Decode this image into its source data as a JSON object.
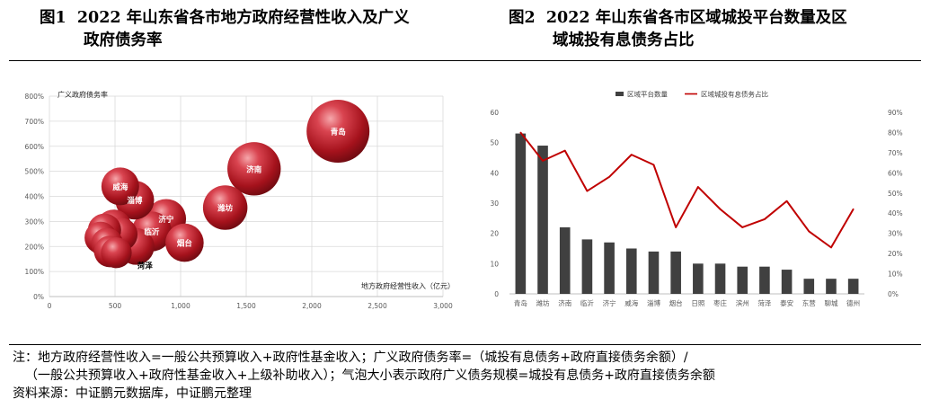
{
  "figure1": {
    "number": "图1",
    "title_line1": "2022 年山东省各市地方政府经营性收入及广义",
    "title_line2": "政府债务率"
  },
  "figure2": {
    "number": "图2",
    "title_line1": "2022 年山东省各市区域城投平台数量及区",
    "title_line2": "域城投有息债务占比"
  },
  "notes": {
    "line1": "注：地方政府经营性收入=一般公共预算收入+政府性基金收入；广义政府债务率=（城投有息债务+政府直接债务余额）/",
    "line2": "（一般公共预算收入+政府性基金收入+上级补助收入）；气泡大小表示政府广义债务规模=城投有息债务+政府直接债务余额",
    "line3": "资料来源：中证鹏元数据库，中证鹏元整理"
  },
  "chart_data": [
    {
      "type": "scatter",
      "bubble": true,
      "ylabel": "广义政府债务率",
      "xlabel": "地方政府经营性收入（亿元）",
      "xlim": [
        0,
        3000
      ],
      "ylim": [
        0,
        800
      ],
      "x_ticks": [
        "0",
        "500",
        "1,000",
        "1,500",
        "2,000",
        "2,500",
        "3,000"
      ],
      "y_ticks": [
        "0%",
        "100%",
        "200%",
        "300%",
        "400%",
        "500%",
        "600%",
        "700%",
        "800%"
      ],
      "grid": true,
      "color": "#b81d24",
      "points": [
        {
          "label": "青岛",
          "x": 2200,
          "y": 660,
          "size": 1.0
        },
        {
          "label": "济南",
          "x": 1560,
          "y": 510,
          "size": 0.72
        },
        {
          "label": "潍坊",
          "x": 1340,
          "y": 355,
          "size": 0.5
        },
        {
          "label": "烟台",
          "x": 1030,
          "y": 215,
          "size": 0.37
        },
        {
          "label": "济宁",
          "x": 890,
          "y": 310,
          "size": 0.4
        },
        {
          "label": "临沂",
          "x": 780,
          "y": 260,
          "size": 0.4
        },
        {
          "label": "淄博",
          "x": 650,
          "y": 385,
          "size": 0.38
        },
        {
          "label": "威海",
          "x": 540,
          "y": 440,
          "size": 0.36
        },
        {
          "label": "菏泽",
          "x": 660,
          "y": 200,
          "size": 0.34
        },
        {
          "label": "",
          "x": 490,
          "y": 275,
          "size": 0.33
        },
        {
          "label": "",
          "x": 545,
          "y": 248,
          "size": 0.28
        },
        {
          "label": "",
          "x": 420,
          "y": 265,
          "size": 0.28
        },
        {
          "label": "",
          "x": 390,
          "y": 235,
          "size": 0.26
        },
        {
          "label": "",
          "x": 440,
          "y": 210,
          "size": 0.26
        },
        {
          "label": "",
          "x": 460,
          "y": 180,
          "size": 0.25
        },
        {
          "label": "",
          "x": 510,
          "y": 175,
          "size": 0.24
        }
      ],
      "annotations": [
        "菏泽"
      ]
    },
    {
      "type": "bar",
      "categories": [
        "青岛",
        "潍坊",
        "济南",
        "临沂",
        "济宁",
        "威海",
        "淄博",
        "烟台",
        "日照",
        "枣庄",
        "滨州",
        "菏泽",
        "泰安",
        "东营",
        "聊城",
        "德州"
      ],
      "series": [
        {
          "name": "区域平台数量",
          "type": "bar",
          "axis": "left",
          "color": "#404040",
          "values": [
            53,
            49,
            22,
            18,
            17,
            15,
            14,
            14,
            10,
            10,
            9,
            9,
            8,
            5,
            5,
            5
          ]
        },
        {
          "name": "区域城投有息债务占比",
          "type": "line",
          "axis": "right",
          "color": "#c00000",
          "values": [
            80,
            66,
            71,
            51,
            58,
            69,
            64,
            33,
            53,
            42,
            33,
            37,
            46,
            31,
            23,
            42
          ]
        }
      ],
      "ylim_left": [
        0,
        60
      ],
      "ylim_right": [
        0,
        90
      ],
      "y_left_ticks": [
        "0",
        "10",
        "20",
        "30",
        "40",
        "50",
        "60"
      ],
      "y_right_ticks": [
        "0%",
        "10%",
        "20%",
        "30%",
        "40%",
        "50%",
        "60%",
        "70%",
        "80%",
        "90%"
      ],
      "legend": "top-left",
      "grid": false
    }
  ]
}
